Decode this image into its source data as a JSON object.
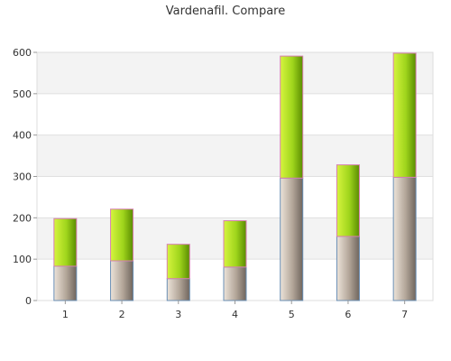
{
  "chart_data": {
    "type": "bar",
    "stacked": true,
    "title": "Vardenafil. Compare",
    "xlabel": "",
    "ylabel": "",
    "categories": [
      "1",
      "2",
      "3",
      "4",
      "5",
      "6",
      "7"
    ],
    "series": [
      {
        "values": [
          83,
          96,
          53,
          81,
          296,
          155,
          298
        ],
        "color": "#8c7f72"
      },
      {
        "values": [
          115,
          125,
          83,
          112,
          295,
          173,
          300
        ],
        "color": "#8fd400"
      }
    ],
    "ylim": [
      0,
      600
    ],
    "yticks": [
      0,
      100,
      200,
      300,
      400,
      500,
      600
    ],
    "grid": true,
    "legend": "none"
  }
}
